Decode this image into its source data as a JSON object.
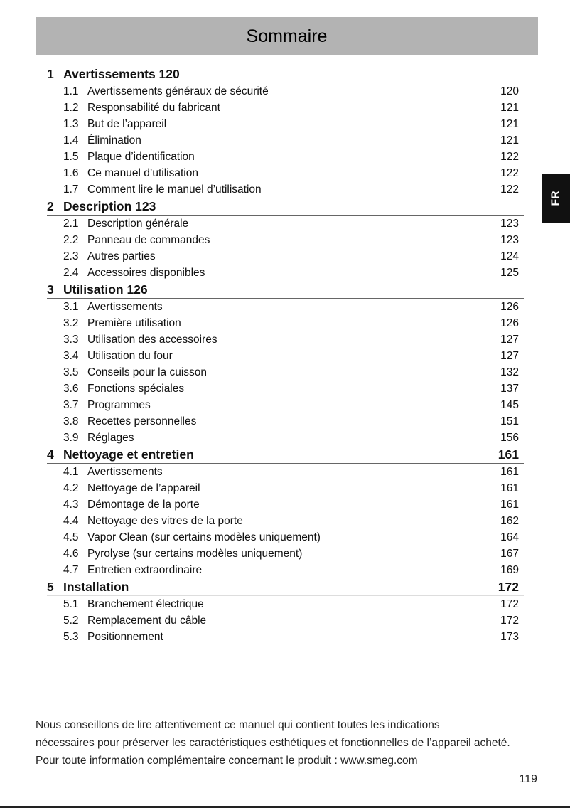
{
  "title": "Sommaire",
  "language_tab": "FR",
  "sections": [
    {
      "num": "1",
      "title": "Avertissements 120",
      "page": "",
      "items": [
        {
          "num": "1.1",
          "title": "Avertissements généraux de sécurité",
          "page": "120"
        },
        {
          "num": "1.2",
          "title": "Responsabilité du fabricant",
          "page": "121"
        },
        {
          "num": "1.3",
          "title": "But de l’appareil",
          "page": "121"
        },
        {
          "num": "1.4",
          "title": "Élimination",
          "page": "121"
        },
        {
          "num": "1.5",
          "title": "Plaque d’identification",
          "page": "122"
        },
        {
          "num": "1.6",
          "title": "Ce manuel d’utilisation",
          "page": "122"
        },
        {
          "num": "1.7",
          "title": "Comment lire le manuel d’utilisation",
          "page": "122"
        }
      ]
    },
    {
      "num": "2",
      "title": "Description 123",
      "page": "",
      "items": [
        {
          "num": "2.1",
          "title": "Description générale",
          "page": "123"
        },
        {
          "num": "2.2",
          "title": "Panneau de commandes",
          "page": "123"
        },
        {
          "num": "2.3",
          "title": "Autres parties",
          "page": "124"
        },
        {
          "num": "2.4",
          "title": "Accessoires disponibles",
          "page": "125"
        }
      ]
    },
    {
      "num": "3",
      "title": "Utilisation 126",
      "page": "",
      "items": [
        {
          "num": "3.1",
          "title": "Avertissements",
          "page": "126"
        },
        {
          "num": "3.2",
          "title": "Première utilisation",
          "page": "126"
        },
        {
          "num": "3.3",
          "title": "Utilisation des accessoires",
          "page": "127"
        },
        {
          "num": "3.4",
          "title": "Utilisation du four",
          "page": "127"
        },
        {
          "num": "3.5",
          "title": "Conseils pour la cuisson",
          "page": "132"
        },
        {
          "num": "3.6",
          "title": "Fonctions spéciales",
          "page": "137"
        },
        {
          "num": "3.7",
          "title": "Programmes",
          "page": "145"
        },
        {
          "num": "3.8",
          "title": "Recettes personnelles",
          "page": "151"
        },
        {
          "num": "3.9",
          "title": "Réglages",
          "page": "156"
        }
      ]
    },
    {
      "num": "4",
      "title": "Nettoyage et entretien",
      "page": "161",
      "items": [
        {
          "num": "4.1",
          "title": "Avertissements",
          "page": "161"
        },
        {
          "num": "4.2",
          "title": "Nettoyage de l’appareil",
          "page": "161"
        },
        {
          "num": "4.3",
          "title": "Démontage de la porte",
          "page": "161"
        },
        {
          "num": "4.4",
          "title": "Nettoyage des vitres de la porte",
          "page": "162"
        },
        {
          "num": "4.5",
          "title": "Vapor Clean (sur certains modèles uniquement)",
          "page": "164"
        },
        {
          "num": "4.6",
          "title": "Pyrolyse (sur certains modèles uniquement)",
          "page": "167"
        },
        {
          "num": "4.7",
          "title": "Entretien extraordinaire",
          "page": "169"
        }
      ]
    },
    {
      "num": "5",
      "title": "Installation",
      "page": "172",
      "items": [
        {
          "num": "5.1",
          "title": "Branchement électrique",
          "page": "172"
        },
        {
          "num": "5.2",
          "title": "Remplacement du câble",
          "page": "172"
        },
        {
          "num": "5.3",
          "title": "Positionnement",
          "page": "173"
        }
      ]
    }
  ],
  "note": {
    "line1": "Nous conseillons de lire attentivement ce manuel qui contient toutes les indications",
    "line2": "nécessaires pour préserver les caractéristiques esthétiques et fonctionnelles de l’appareil acheté.",
    "line3": "Pour toute information complémentaire concernant le produit : www.smeg.com"
  },
  "page_number": "119"
}
